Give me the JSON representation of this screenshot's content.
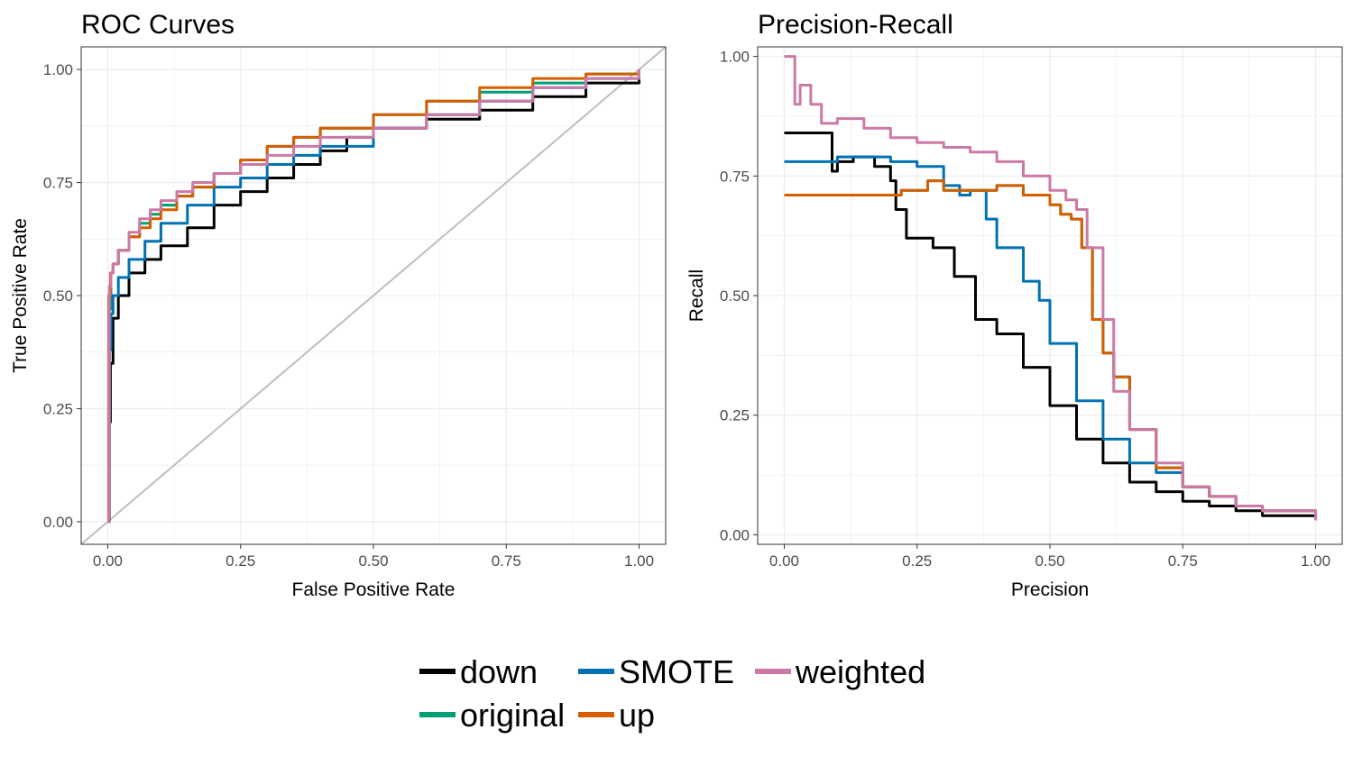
{
  "colors": {
    "down": "#000000",
    "original": "#009E73",
    "SMOTE": "#0072B2",
    "up": "#D55E00",
    "weighted": "#CC79A7",
    "diagonal": "#BEBEBE",
    "grid": "#EBEBEB",
    "frame": "#333333"
  },
  "chart_data": [
    {
      "type": "line",
      "title": "ROC Curves",
      "xlabel": "False Positive Rate",
      "ylabel": "True Positive Rate",
      "xlim": [
        -0.05,
        1.05
      ],
      "ylim": [
        -0.05,
        1.05
      ],
      "xticks": [
        "0.00",
        "0.25",
        "0.50",
        "0.75",
        "1.00"
      ],
      "yticks": [
        "0.00",
        "0.25",
        "0.50",
        "0.75",
        "1.00"
      ],
      "grid": true,
      "reference_line": {
        "x": [
          -0.05,
          1.05
        ],
        "y": [
          -0.05,
          1.05
        ]
      },
      "series": [
        {
          "name": "down",
          "x": [
            0,
            0.003,
            0.005,
            0.01,
            0.02,
            0.04,
            0.07,
            0.1,
            0.15,
            0.2,
            0.25,
            0.3,
            0.35,
            0.4,
            0.45,
            0.5,
            0.6,
            0.7,
            0.8,
            0.9,
            1.0
          ],
          "y": [
            0,
            0.22,
            0.35,
            0.45,
            0.5,
            0.55,
            0.58,
            0.61,
            0.65,
            0.7,
            0.73,
            0.76,
            0.79,
            0.82,
            0.85,
            0.87,
            0.89,
            0.91,
            0.94,
            0.97,
            1.0
          ]
        },
        {
          "name": "original",
          "x": [
            0,
            0.003,
            0.006,
            0.01,
            0.02,
            0.04,
            0.06,
            0.08,
            0.1,
            0.13,
            0.16,
            0.2,
            0.25,
            0.3,
            0.35,
            0.4,
            0.5,
            0.6,
            0.7,
            0.8,
            0.9,
            1.0
          ],
          "y": [
            0,
            0.47,
            0.55,
            0.57,
            0.6,
            0.63,
            0.66,
            0.68,
            0.7,
            0.72,
            0.74,
            0.77,
            0.8,
            0.83,
            0.85,
            0.87,
            0.9,
            0.93,
            0.95,
            0.97,
            0.99,
            1.0
          ]
        },
        {
          "name": "SMOTE",
          "x": [
            0,
            0.003,
            0.006,
            0.01,
            0.02,
            0.04,
            0.07,
            0.1,
            0.15,
            0.2,
            0.25,
            0.3,
            0.35,
            0.4,
            0.5,
            0.6,
            0.7,
            0.8,
            0.9,
            1.0
          ],
          "y": [
            0,
            0.38,
            0.46,
            0.5,
            0.54,
            0.58,
            0.62,
            0.66,
            0.7,
            0.74,
            0.76,
            0.79,
            0.81,
            0.83,
            0.87,
            0.9,
            0.93,
            0.96,
            0.98,
            1.0
          ]
        },
        {
          "name": "up",
          "x": [
            0,
            0.002,
            0.005,
            0.01,
            0.02,
            0.04,
            0.06,
            0.08,
            0.1,
            0.13,
            0.16,
            0.2,
            0.25,
            0.3,
            0.35,
            0.4,
            0.5,
            0.6,
            0.7,
            0.8,
            0.9,
            1.0
          ],
          "y": [
            0,
            0.5,
            0.55,
            0.57,
            0.6,
            0.63,
            0.65,
            0.67,
            0.69,
            0.72,
            0.74,
            0.77,
            0.8,
            0.83,
            0.85,
            0.87,
            0.9,
            0.93,
            0.96,
            0.98,
            0.99,
            1.0
          ]
        },
        {
          "name": "weighted",
          "x": [
            0,
            0.003,
            0.006,
            0.01,
            0.02,
            0.04,
            0.06,
            0.08,
            0.1,
            0.13,
            0.16,
            0.2,
            0.25,
            0.3,
            0.35,
            0.4,
            0.5,
            0.6,
            0.7,
            0.8,
            0.9,
            1.0
          ],
          "y": [
            0,
            0.52,
            0.55,
            0.57,
            0.6,
            0.64,
            0.67,
            0.69,
            0.71,
            0.73,
            0.75,
            0.77,
            0.79,
            0.81,
            0.83,
            0.85,
            0.87,
            0.9,
            0.93,
            0.96,
            0.98,
            1.0
          ]
        }
      ]
    },
    {
      "type": "line",
      "title": "Precision-Recall",
      "xlabel": "Precision",
      "ylabel": "Recall",
      "xlim": [
        -0.05,
        1.05
      ],
      "ylim": [
        -0.02,
        1.02
      ],
      "xticks": [
        "0.00",
        "0.25",
        "0.50",
        "0.75",
        "1.00"
      ],
      "yticks": [
        "0.00",
        "0.25",
        "0.50",
        "0.75",
        "1.00"
      ],
      "grid": true,
      "series": [
        {
          "name": "down",
          "x": [
            0,
            0.08,
            0.09,
            0.1,
            0.13,
            0.17,
            0.2,
            0.21,
            0.23,
            0.28,
            0.32,
            0.36,
            0.4,
            0.45,
            0.5,
            0.55,
            0.6,
            0.65,
            0.7,
            0.75,
            0.8,
            0.85,
            0.9,
            1.0
          ],
          "y": [
            0.84,
            0.84,
            0.76,
            0.78,
            0.79,
            0.77,
            0.74,
            0.68,
            0.62,
            0.6,
            0.54,
            0.45,
            0.42,
            0.35,
            0.27,
            0.2,
            0.15,
            0.11,
            0.09,
            0.07,
            0.06,
            0.05,
            0.04,
            0.03
          ]
        },
        {
          "name": "original",
          "x": [
            0,
            0.18,
            0.22,
            0.27,
            0.3,
            0.35,
            0.4,
            0.45,
            0.5,
            0.52,
            0.54,
            0.56,
            0.58,
            0.6,
            0.62,
            0.65,
            0.7,
            0.75,
            0.8,
            0.85,
            0.9,
            1.0
          ],
          "y": [
            0.71,
            0.71,
            0.72,
            0.74,
            0.72,
            0.72,
            0.73,
            0.71,
            0.69,
            0.67,
            0.66,
            0.6,
            0.45,
            0.38,
            0.33,
            0.22,
            0.14,
            0.1,
            0.08,
            0.06,
            0.05,
            0.03
          ]
        },
        {
          "name": "SMOTE",
          "x": [
            0,
            0.07,
            0.1,
            0.15,
            0.2,
            0.25,
            0.3,
            0.33,
            0.35,
            0.38,
            0.4,
            0.45,
            0.48,
            0.5,
            0.55,
            0.6,
            0.65,
            0.7,
            0.75,
            0.8,
            0.85,
            0.9,
            1.0
          ],
          "y": [
            0.78,
            0.78,
            0.79,
            0.79,
            0.78,
            0.77,
            0.73,
            0.71,
            0.72,
            0.66,
            0.6,
            0.53,
            0.49,
            0.4,
            0.28,
            0.2,
            0.15,
            0.13,
            0.1,
            0.08,
            0.06,
            0.05,
            0.03
          ]
        },
        {
          "name": "up",
          "x": [
            0,
            0.18,
            0.22,
            0.27,
            0.3,
            0.35,
            0.4,
            0.45,
            0.5,
            0.52,
            0.54,
            0.56,
            0.58,
            0.6,
            0.62,
            0.65,
            0.7,
            0.75,
            0.8,
            0.85,
            0.9,
            1.0
          ],
          "y": [
            0.71,
            0.71,
            0.72,
            0.74,
            0.72,
            0.72,
            0.73,
            0.71,
            0.69,
            0.67,
            0.66,
            0.6,
            0.45,
            0.38,
            0.33,
            0.22,
            0.14,
            0.1,
            0.08,
            0.06,
            0.05,
            0.03
          ]
        },
        {
          "name": "weighted",
          "x": [
            0,
            0.015,
            0.02,
            0.03,
            0.05,
            0.07,
            0.1,
            0.15,
            0.2,
            0.25,
            0.3,
            0.35,
            0.4,
            0.45,
            0.5,
            0.53,
            0.55,
            0.57,
            0.6,
            0.62,
            0.65,
            0.7,
            0.75,
            0.8,
            0.85,
            0.9,
            1.0
          ],
          "y": [
            1.0,
            1.0,
            0.9,
            0.94,
            0.9,
            0.86,
            0.87,
            0.85,
            0.83,
            0.82,
            0.81,
            0.8,
            0.78,
            0.75,
            0.72,
            0.7,
            0.68,
            0.6,
            0.45,
            0.3,
            0.22,
            0.15,
            0.1,
            0.08,
            0.06,
            0.05,
            0.03
          ]
        }
      ]
    }
  ],
  "legend": {
    "placement": "bottom",
    "items": [
      {
        "key": "down",
        "label": "down"
      },
      {
        "key": "SMOTE",
        "label": "SMOTE"
      },
      {
        "key": "weighted",
        "label": "weighted"
      },
      {
        "key": "original",
        "label": "original"
      },
      {
        "key": "up",
        "label": "up"
      }
    ]
  }
}
